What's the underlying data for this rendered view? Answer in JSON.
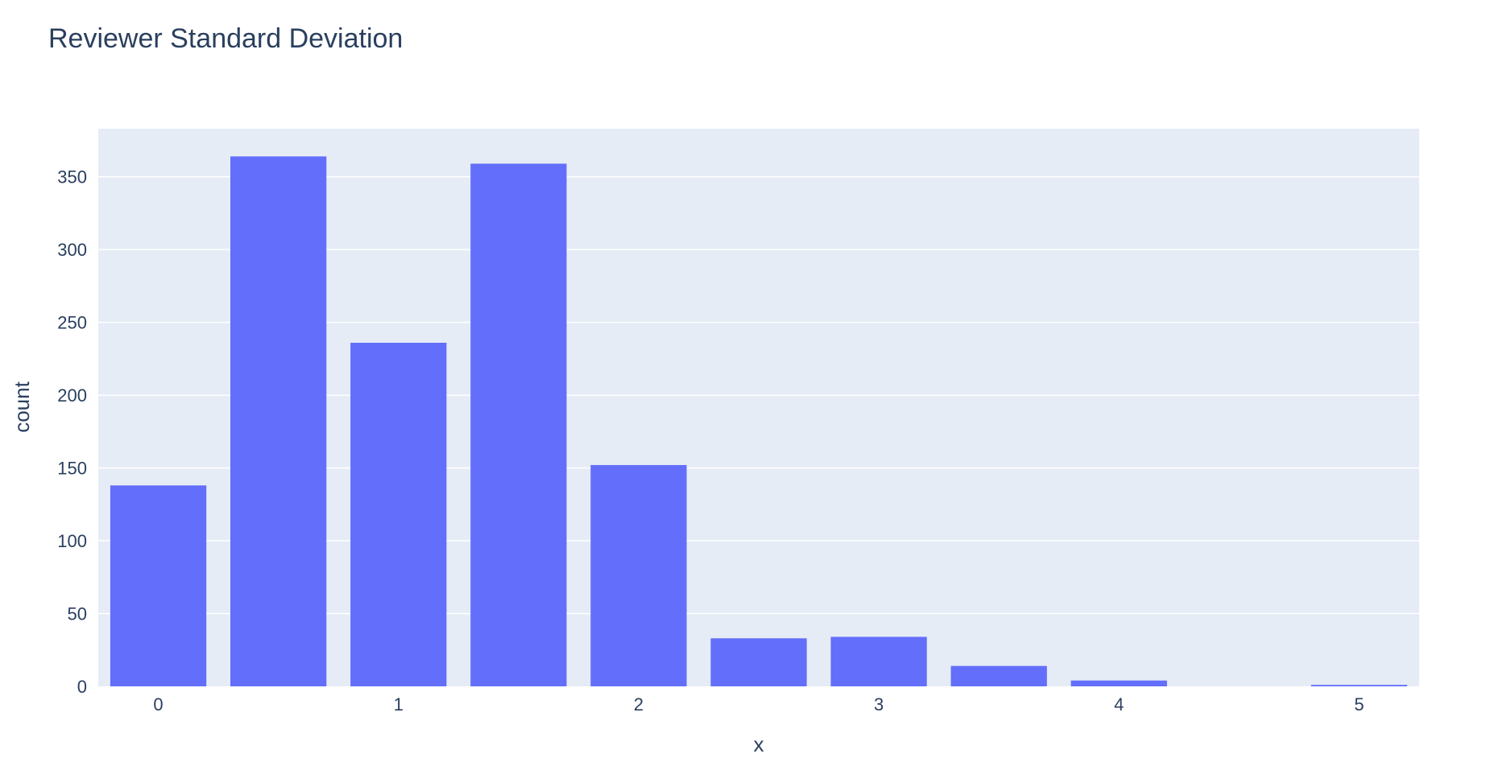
{
  "chart_data": {
    "type": "bar",
    "title": "Reviewer Standard Deviation",
    "xlabel": "x",
    "ylabel": "count",
    "x": [
      0,
      0.5,
      1,
      1.5,
      2,
      2.5,
      3,
      3.5,
      4,
      4.5,
      5
    ],
    "values": [
      138,
      364,
      236,
      359,
      152,
      33,
      34,
      14,
      4,
      0,
      1
    ],
    "bar_width": 0.4,
    "xlim": [
      -0.25,
      5.25
    ],
    "ylim": [
      0,
      383
    ],
    "xticks": [
      0,
      1,
      2,
      3,
      4,
      5
    ],
    "xtick_labels": [
      "0",
      "1",
      "2",
      "3",
      "4",
      "5"
    ],
    "yticks": [
      0,
      50,
      100,
      150,
      200,
      250,
      300,
      350
    ],
    "ytick_labels": [
      "0",
      "50",
      "100",
      "150",
      "200",
      "250",
      "300",
      "350"
    ],
    "grid": true,
    "colors": {
      "bar": "#636efa",
      "plot_bg": "#e5ecf6",
      "grid": "#ffffff",
      "text": "#2a3f5f"
    }
  }
}
